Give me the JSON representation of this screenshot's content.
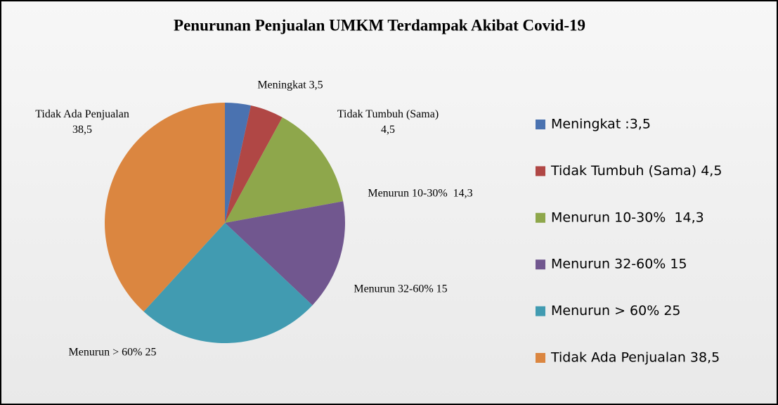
{
  "chart_data": {
    "type": "pie",
    "title": "Penurunan Penjualan UMKM Terdampak Akibat Covid-19",
    "categories": [
      "Meningkat :3,5",
      "Tidak Tumbuh (Sama) 4,5",
      "Menurun 10-30%  14,3",
      "Menurun 32-60% 15",
      "Menurun > 60% 25",
      "Tidak Ada Penjualan 38,5"
    ],
    "values": [
      3.5,
      4.5,
      14.3,
      15,
      25,
      38.5
    ],
    "value_labels": [
      "Meningkat 3,5",
      "Tidak Tumbuh (Sama)\n4,5",
      "Menurun 10-30%  14,3",
      "Menurun 32-60% 15",
      "Menurun > 60% 25",
      "Tidak Ada Penjualan\n38,5"
    ],
    "colors": [
      "#4a72b0",
      "#b04745",
      "#8ea74b",
      "#71578f",
      "#419bb1",
      "#db8640"
    ],
    "legend": "right"
  }
}
